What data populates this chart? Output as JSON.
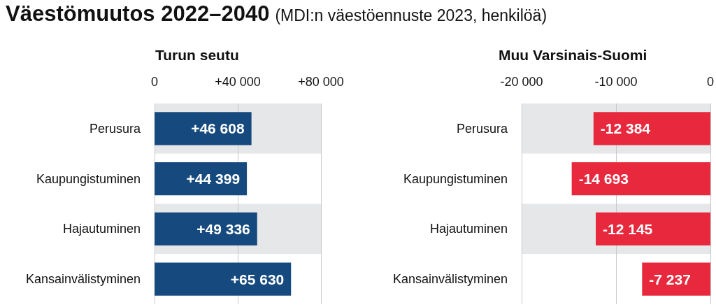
{
  "chart_data": [
    {
      "type": "bar",
      "orientation": "horizontal",
      "annotations": [
        "Väestömuutos 2022–2040",
        "(MDI:n väestöennuste 2023, henkilöä)"
      ],
      "title": "Turun seutu",
      "categories": [
        "Perusura",
        "Kaupungistuminen",
        "Hajautuminen",
        "Kansainvälistyminen"
      ],
      "values": [
        46608,
        44399,
        49336,
        65630
      ],
      "value_labels": [
        "+46 608",
        "+44 399",
        "+49 336",
        "+65 630"
      ],
      "color": "#164a7f",
      "xlim": [
        0,
        80000
      ],
      "xticks": [
        0,
        {
          "value": 40000,
          "label": "+40 000"
        },
        {
          "value": 80000,
          "label": "+80 000"
        }
      ],
      "grid": "x"
    },
    {
      "type": "bar",
      "orientation": "horizontal",
      "title": "Muu Varsinais-Suomi",
      "categories": [
        "Perusura",
        "Kaupungistuminen",
        "Hajautuminen",
        "Kansainvälistyminen"
      ],
      "values": [
        -12384,
        -14693,
        -12145,
        -7237
      ],
      "value_labels": [
        "-12 384",
        "-14 693",
        "-12 145",
        "-7 237"
      ],
      "color": "#e8283c",
      "xlim": [
        -20000,
        0
      ],
      "xticks": [
        {
          "value": -20000,
          "label": "-20 000"
        },
        {
          "value": -10000,
          "label": "-10 000"
        },
        0
      ],
      "grid": "x"
    }
  ]
}
